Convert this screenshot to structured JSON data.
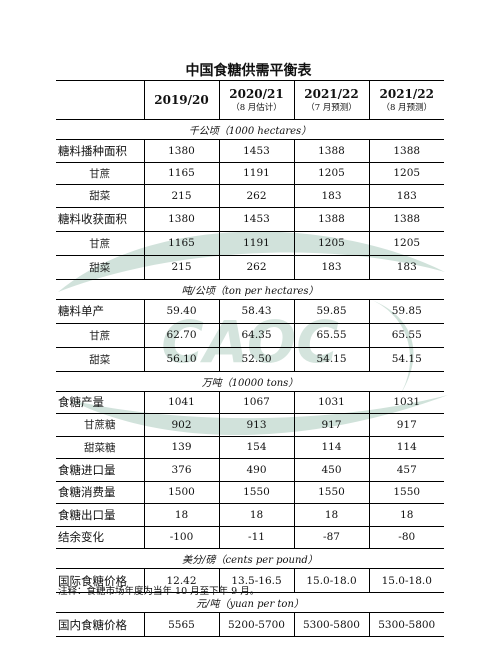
{
  "title": "中国食糖供需平衡表",
  "watermark": {
    "text": "CAOC",
    "color": "#2e7d5b"
  },
  "header": {
    "corner": "",
    "columns": [
      {
        "year": "2019/20",
        "sub": ""
      },
      {
        "year": "2020/21",
        "sub": "（8 月估计）"
      },
      {
        "year": "2021/22",
        "sub": "（7 月预测）"
      },
      {
        "year": "2021/22",
        "sub": "（8 月预测）"
      }
    ]
  },
  "units": {
    "area": "千公顷（1000 hectares）",
    "yield": "吨/公顷（ton per hectares）",
    "tons": "万吨（10000 tons）",
    "cents": "美分/磅（cents per pound）",
    "yuan": "元/吨（yuan per ton）"
  },
  "rows": {
    "sown_area": {
      "label": "糖料播种面积",
      "values": [
        "1380",
        "1453",
        "1388",
        "1388"
      ]
    },
    "sown_cane": {
      "label": "甘蔗",
      "values": [
        "1165",
        "1191",
        "1205",
        "1205"
      ]
    },
    "sown_beet": {
      "label": "甜菜",
      "values": [
        "215",
        "262",
        "183",
        "183"
      ]
    },
    "harv_area": {
      "label": "糖料收获面积",
      "values": [
        "1380",
        "1453",
        "1388",
        "1388"
      ]
    },
    "harv_cane": {
      "label": "甘蔗",
      "values": [
        "1165",
        "1191",
        "1205",
        "1205"
      ]
    },
    "harv_beet": {
      "label": "甜菜",
      "values": [
        "215",
        "262",
        "183",
        "183"
      ]
    },
    "yield": {
      "label": "糖料单产",
      "values": [
        "59.40",
        "58.43",
        "59.85",
        "59.85"
      ]
    },
    "yield_cane": {
      "label": "甘蔗",
      "values": [
        "62.70",
        "64.35",
        "65.55",
        "65.55"
      ]
    },
    "yield_beet": {
      "label": "甜菜",
      "values": [
        "56.10",
        "52.50",
        "54.15",
        "54.15"
      ]
    },
    "production": {
      "label": "食糖产量",
      "values": [
        "1041",
        "1067",
        "1031",
        "1031"
      ]
    },
    "prod_cane": {
      "label": "甘蔗糖",
      "values": [
        "902",
        "913",
        "917",
        "917"
      ]
    },
    "prod_beet": {
      "label": "甜菜糖",
      "values": [
        "139",
        "154",
        "114",
        "114"
      ]
    },
    "imports": {
      "label": "食糖进口量",
      "values": [
        "376",
        "490",
        "450",
        "457"
      ]
    },
    "consumption": {
      "label": "食糖消费量",
      "values": [
        "1500",
        "1550",
        "1550",
        "1550"
      ]
    },
    "exports": {
      "label": "食糖出口量",
      "values": [
        "18",
        "18",
        "18",
        "18"
      ]
    },
    "balance": {
      "label": "结余变化",
      "values": [
        "-100",
        "-11",
        "-87",
        "-80"
      ]
    },
    "intl_price": {
      "label": "国际食糖价格",
      "values": [
        "12.42",
        "13.5-16.5",
        "15.0-18.0",
        "15.0-18.0"
      ]
    },
    "dom_price": {
      "label": "国内食糖价格",
      "values": [
        "5565",
        "5200-5700",
        "5300-5800",
        "5300-5800"
      ]
    }
  },
  "note": "注释：食糖市场年度为当年 10 月至下年 9 月。"
}
